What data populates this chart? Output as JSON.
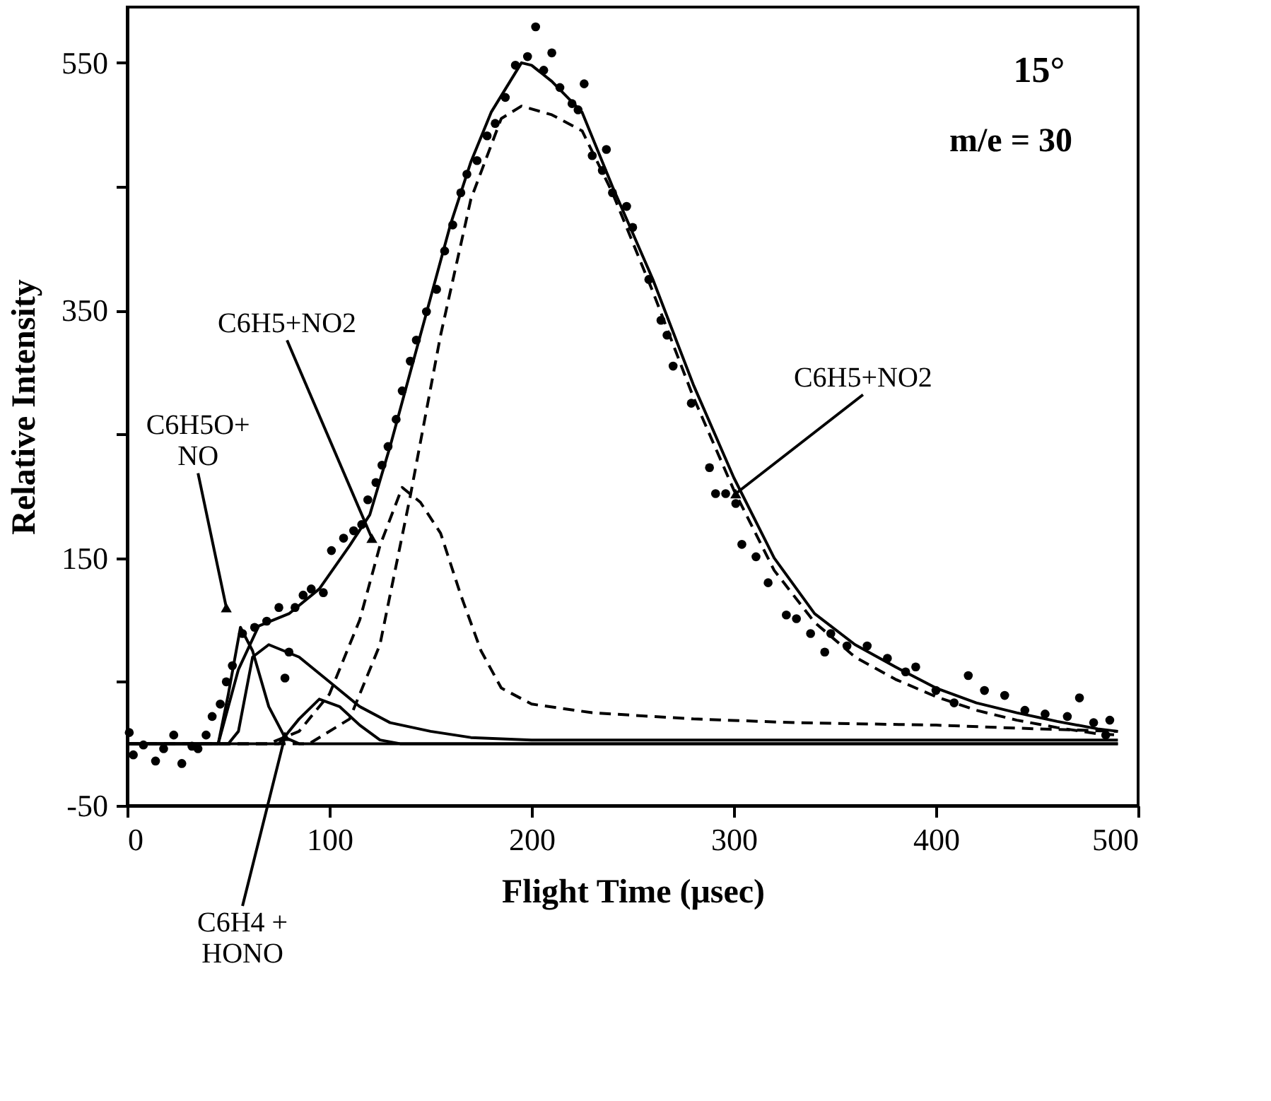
{
  "chart_data": {
    "type": "scatter",
    "xlabel": "Flight Time (μsec)",
    "ylabel": "Relative Intensity",
    "xlim": [
      0,
      500
    ],
    "xticks": [
      0,
      100,
      200,
      300,
      400,
      500
    ],
    "ylim": [
      -50,
      595
    ],
    "yticks": [
      -50,
      {
        "value": 50,
        "label": null
      },
      150,
      {
        "value": 250,
        "label": null
      },
      350,
      {
        "value": 450,
        "label": null
      },
      550
    ],
    "grid": false,
    "annotations": [
      "15°",
      "m/e = 30",
      {
        "text": "C6H5+NO2",
        "x": 301,
        "y": 202
      },
      {
        "text": "C6H5+NO2",
        "x": 121,
        "y": 166
      },
      {
        "text": "C6H5O+\nNO",
        "x": 49,
        "y": 110
      },
      {
        "text": "C6H4 +\nHONO",
        "x": 78,
        "y": 6
      }
    ],
    "series": [
      {
        "color": "#000000",
        "marker": "circle",
        "x": [
          1,
          3,
          8,
          14,
          18,
          23,
          27,
          32,
          35,
          39,
          42,
          46,
          49,
          52,
          57,
          63,
          69,
          75,
          78,
          80,
          83,
          87,
          91,
          97,
          101,
          107,
          112,
          116,
          119,
          123,
          126,
          129,
          133,
          136,
          140,
          143,
          148,
          153,
          157,
          161,
          165,
          168,
          173,
          178,
          182,
          187,
          192,
          198,
          202,
          206,
          210,
          214,
          220,
          223,
          226,
          230,
          235,
          237,
          240,
          247,
          250,
          258,
          264,
          267,
          270,
          279,
          288,
          291,
          296,
          301,
          304,
          311,
          317,
          326,
          331,
          338,
          345,
          348,
          356,
          366,
          376,
          385,
          390,
          400,
          409,
          416,
          424,
          434,
          444,
          454,
          465,
          471,
          478,
          484,
          486
        ],
        "values": [
          9,
          -9,
          -1,
          -14,
          -4,
          7,
          -16,
          -2,
          -4,
          7,
          22,
          32,
          50,
          63,
          89,
          94,
          99,
          110,
          53,
          74,
          110,
          120,
          125,
          122,
          156,
          166,
          172,
          177,
          197,
          211,
          225,
          240,
          262,
          285,
          309,
          326,
          349,
          367,
          398,
          419,
          445,
          460,
          471,
          491,
          501,
          522,
          548,
          555,
          579,
          544,
          558,
          530,
          517,
          512,
          533,
          475,
          463,
          480,
          445,
          434,
          417,
          375,
          342,
          330,
          305,
          275,
          223,
          202,
          202,
          194,
          161,
          151,
          130,
          104,
          101,
          89,
          74,
          89,
          79,
          79,
          69,
          58,
          62,
          43,
          33,
          55,
          43,
          39,
          27,
          24,
          22,
          37,
          17,
          7,
          19
        ]
      },
      {
        "type": "line",
        "color": "#000000",
        "line_style": "solid",
        "x": [
          0,
          45,
          55,
          65,
          80,
          95,
          110,
          120,
          130,
          140,
          150,
          160,
          170,
          180,
          195,
          200,
          210,
          225,
          240,
          260,
          280,
          300,
          320,
          340,
          360,
          380,
          400,
          420,
          440,
          460,
          480,
          490
        ],
        "values": [
          0,
          0,
          60,
          95,
          105,
          125,
          160,
          185,
          240,
          300,
          360,
          420,
          470,
          510,
          550,
          548,
          535,
          510,
          450,
          375,
          290,
          215,
          150,
          105,
          80,
          62,
          45,
          33,
          25,
          18,
          12,
          10
        ]
      },
      {
        "type": "line",
        "color": "#000000",
        "line_style": "dashed",
        "x": [
          0,
          90,
          110,
          125,
          140,
          155,
          170,
          185,
          195,
          210,
          225,
          240,
          260,
          280,
          300,
          320,
          340,
          360,
          380,
          400,
          420,
          440,
          460,
          480,
          490
        ],
        "values": [
          0,
          0,
          20,
          80,
          200,
          330,
          440,
          505,
          515,
          508,
          495,
          445,
          365,
          280,
          205,
          140,
          98,
          70,
          52,
          38,
          27,
          19,
          13,
          8,
          7
        ]
      },
      {
        "type": "line",
        "color": "#000000",
        "line_style": "dashed",
        "x": [
          0,
          70,
          85,
          100,
          115,
          125,
          136,
          145,
          155,
          165,
          175,
          185,
          200,
          230,
          280,
          330,
          400,
          450,
          490
        ],
        "values": [
          0,
          0,
          10,
          40,
          100,
          160,
          207,
          195,
          170,
          120,
          75,
          45,
          32,
          25,
          20,
          17,
          15,
          12,
          10
        ]
      },
      {
        "type": "line",
        "color": "#000000",
        "line_style": "solid",
        "x": [
          0,
          45,
          50,
          56,
          62,
          70,
          78,
          85,
          490
        ],
        "values": [
          0,
          0,
          40,
          94,
          75,
          30,
          5,
          0,
          0
        ]
      },
      {
        "type": "line",
        "color": "#000000",
        "line_style": "solid",
        "x": [
          0,
          50,
          55,
          62,
          70,
          85,
          100,
          115,
          130,
          150,
          170,
          200,
          490
        ],
        "values": [
          0,
          0,
          10,
          70,
          80,
          70,
          50,
          30,
          17,
          10,
          5,
          3,
          3
        ]
      },
      {
        "type": "line",
        "color": "#000000",
        "line_style": "solid",
        "x": [
          0,
          75,
          85,
          95,
          105,
          115,
          125,
          135,
          490
        ],
        "values": [
          0,
          0,
          20,
          36,
          30,
          15,
          3,
          0,
          0
        ]
      }
    ]
  }
}
